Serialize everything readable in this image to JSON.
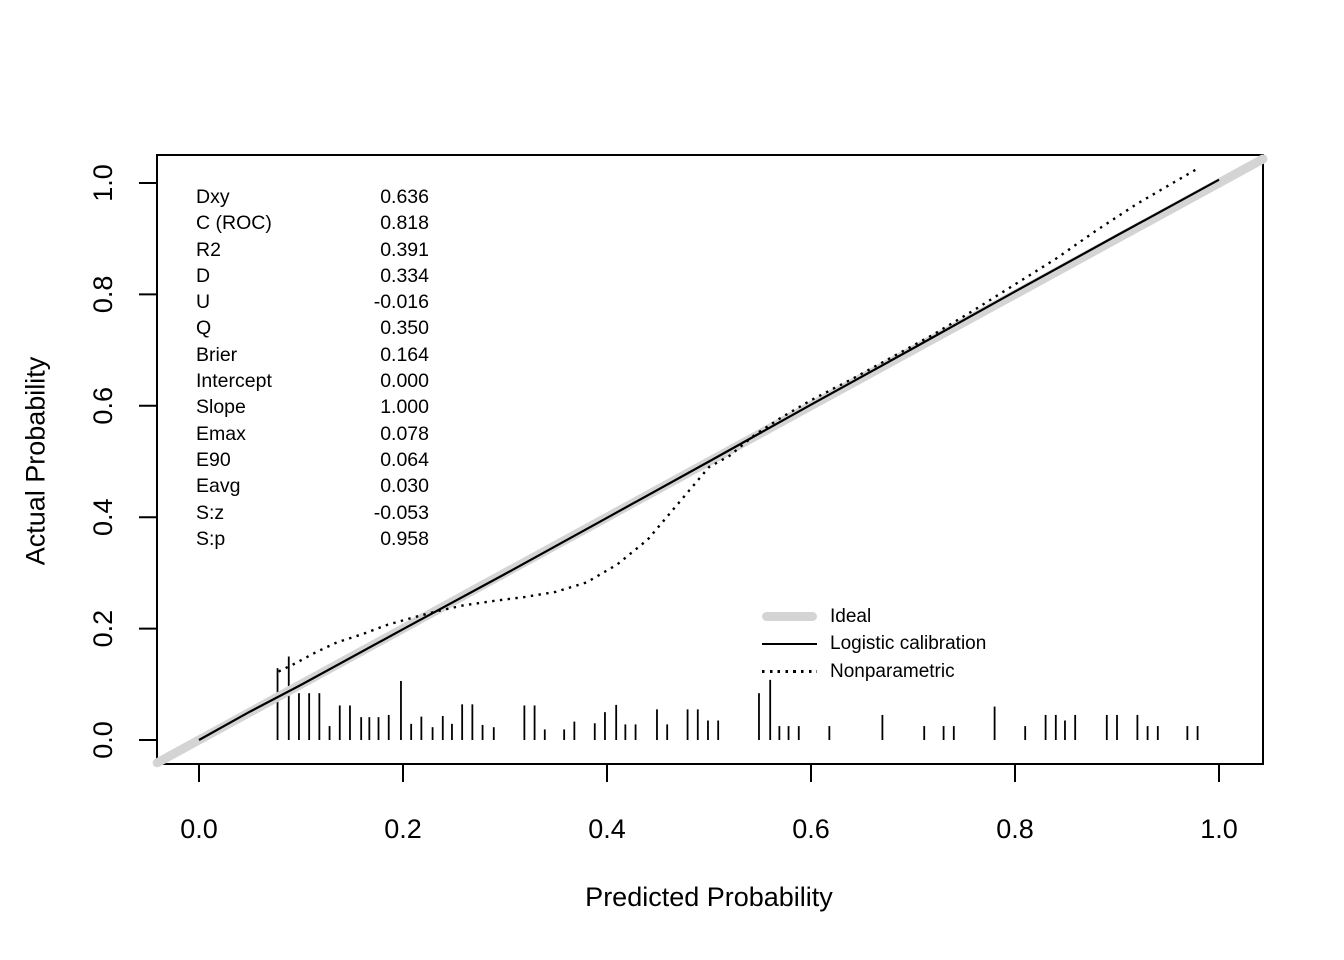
{
  "chart_data": {
    "type": "line",
    "title": "",
    "xlabel": "Predicted Probability",
    "ylabel": "Actual Probability",
    "xlim": [
      -0.042,
      1.043
    ],
    "ylim": [
      -0.042,
      1.043
    ],
    "grid": false,
    "legend_position": "inside lower-right",
    "x_ticks": [
      {
        "v": 0.0,
        "label": "0.0"
      },
      {
        "v": 0.2,
        "label": "0.2"
      },
      {
        "v": 0.4,
        "label": "0.4"
      },
      {
        "v": 0.6,
        "label": "0.6"
      },
      {
        "v": 0.8,
        "label": "0.8"
      },
      {
        "v": 1.0,
        "label": "1.0"
      }
    ],
    "y_ticks": [
      {
        "v": 0.0,
        "label": "0.0"
      },
      {
        "v": 0.2,
        "label": "0.2"
      },
      {
        "v": 0.4,
        "label": "0.4"
      },
      {
        "v": 0.6,
        "label": "0.6"
      },
      {
        "v": 0.8,
        "label": "0.8"
      },
      {
        "v": 1.0,
        "label": "1.0"
      }
    ],
    "colors": {
      "ideal_gray": "#d4d4d4",
      "line_black": "#000000"
    },
    "legend": [
      {
        "key": "ideal",
        "label": "Ideal"
      },
      {
        "key": "logistic",
        "label": "Logistic calibration"
      },
      {
        "key": "nonparametric",
        "label": "Nonparametric"
      }
    ],
    "stats": [
      {
        "label": "Dxy",
        "value": "0.636"
      },
      {
        "label": "C (ROC)",
        "value": "0.818"
      },
      {
        "label": "R2",
        "value": "0.391"
      },
      {
        "label": "D",
        "value": "0.334"
      },
      {
        "label": "U",
        "value": "-0.016"
      },
      {
        "label": "Q",
        "value": "0.350"
      },
      {
        "label": "Brier",
        "value": "0.164"
      },
      {
        "label": "Intercept",
        "value": "0.000"
      },
      {
        "label": "Slope",
        "value": "1.000"
      },
      {
        "label": "Emax",
        "value": "0.078"
      },
      {
        "label": "E90",
        "value": "0.064"
      },
      {
        "label": "Eavg",
        "value": "0.030"
      },
      {
        "label": "S:z",
        "value": "-0.053"
      },
      {
        "label": "S:p",
        "value": "0.958"
      }
    ],
    "series": [
      {
        "name": "Ideal",
        "key": "ideal",
        "style": {
          "color": "#d4d4d4",
          "width": 9,
          "dash": "solid",
          "cap": "round"
        },
        "points": [
          [
            -0.041,
            -0.041
          ],
          [
            1.043,
            1.043
          ]
        ]
      },
      {
        "name": "Logistic calibration",
        "key": "logistic",
        "style": {
          "color": "#000000",
          "width": 2.2,
          "dash": "solid",
          "cap": "butt"
        },
        "points": [
          [
            0.0,
            0.0
          ],
          [
            0.05,
            0.051
          ],
          [
            0.1,
            0.099
          ],
          [
            0.2,
            0.199
          ],
          [
            0.3,
            0.298
          ],
          [
            0.4,
            0.399
          ],
          [
            0.5,
            0.5
          ],
          [
            0.6,
            0.602
          ],
          [
            0.7,
            0.703
          ],
          [
            0.8,
            0.805
          ],
          [
            0.9,
            0.906
          ],
          [
            1.0,
            1.006
          ]
        ]
      },
      {
        "name": "Nonparametric",
        "key": "nonparametric",
        "style": {
          "color": "#000000",
          "width": 2.4,
          "dash": "dotted",
          "cap": "butt"
        },
        "points": [
          [
            0.078,
            0.123
          ],
          [
            0.095,
            0.138
          ],
          [
            0.115,
            0.158
          ],
          [
            0.135,
            0.175
          ],
          [
            0.16,
            0.19
          ],
          [
            0.185,
            0.207
          ],
          [
            0.21,
            0.22
          ],
          [
            0.235,
            0.232
          ],
          [
            0.26,
            0.242
          ],
          [
            0.29,
            0.25
          ],
          [
            0.32,
            0.257
          ],
          [
            0.35,
            0.266
          ],
          [
            0.38,
            0.283
          ],
          [
            0.41,
            0.315
          ],
          [
            0.44,
            0.36
          ],
          [
            0.47,
            0.425
          ],
          [
            0.5,
            0.49
          ],
          [
            0.52,
            0.51
          ],
          [
            0.545,
            0.548
          ],
          [
            0.57,
            0.578
          ],
          [
            0.6,
            0.61
          ],
          [
            0.64,
            0.648
          ],
          [
            0.68,
            0.688
          ],
          [
            0.72,
            0.728
          ],
          [
            0.76,
            0.772
          ],
          [
            0.8,
            0.818
          ],
          [
            0.84,
            0.864
          ],
          [
            0.88,
            0.915
          ],
          [
            0.92,
            0.963
          ],
          [
            0.95,
            0.995
          ],
          [
            0.98,
            1.027
          ]
        ]
      }
    ],
    "rug_spikes": [
      [
        0.077,
        0.129
      ],
      [
        0.088,
        0.15
      ],
      [
        0.098,
        0.084
      ],
      [
        0.108,
        0.084
      ],
      [
        0.118,
        0.084
      ],
      [
        0.128,
        0.025
      ],
      [
        0.138,
        0.062
      ],
      [
        0.148,
        0.062
      ],
      [
        0.159,
        0.041
      ],
      [
        0.167,
        0.041
      ],
      [
        0.176,
        0.041
      ],
      [
        0.186,
        0.045
      ],
      [
        0.198,
        0.106
      ],
      [
        0.208,
        0.029
      ],
      [
        0.218,
        0.042
      ],
      [
        0.229,
        0.023
      ],
      [
        0.239,
        0.043
      ],
      [
        0.248,
        0.029
      ],
      [
        0.258,
        0.064
      ],
      [
        0.268,
        0.064
      ],
      [
        0.278,
        0.027
      ],
      [
        0.289,
        0.023
      ],
      [
        0.319,
        0.062
      ],
      [
        0.329,
        0.062
      ],
      [
        0.339,
        0.019
      ],
      [
        0.358,
        0.019
      ],
      [
        0.368,
        0.033
      ],
      [
        0.388,
        0.03
      ],
      [
        0.398,
        0.05
      ],
      [
        0.409,
        0.063
      ],
      [
        0.418,
        0.028
      ],
      [
        0.428,
        0.028
      ],
      [
        0.449,
        0.055
      ],
      [
        0.459,
        0.028
      ],
      [
        0.479,
        0.055
      ],
      [
        0.489,
        0.055
      ],
      [
        0.499,
        0.035
      ],
      [
        0.509,
        0.035
      ],
      [
        0.549,
        0.084
      ],
      [
        0.56,
        0.108
      ],
      [
        0.569,
        0.025
      ],
      [
        0.578,
        0.025
      ],
      [
        0.588,
        0.025
      ],
      [
        0.618,
        0.025
      ],
      [
        0.67,
        0.045
      ],
      [
        0.711,
        0.025
      ],
      [
        0.73,
        0.025
      ],
      [
        0.74,
        0.025
      ],
      [
        0.78,
        0.06
      ],
      [
        0.81,
        0.025
      ],
      [
        0.83,
        0.045
      ],
      [
        0.84,
        0.045
      ],
      [
        0.849,
        0.035
      ],
      [
        0.859,
        0.045
      ],
      [
        0.89,
        0.045
      ],
      [
        0.9,
        0.045
      ],
      [
        0.92,
        0.045
      ],
      [
        0.93,
        0.025
      ],
      [
        0.94,
        0.025
      ],
      [
        0.969,
        0.025
      ],
      [
        0.979,
        0.025
      ]
    ]
  }
}
